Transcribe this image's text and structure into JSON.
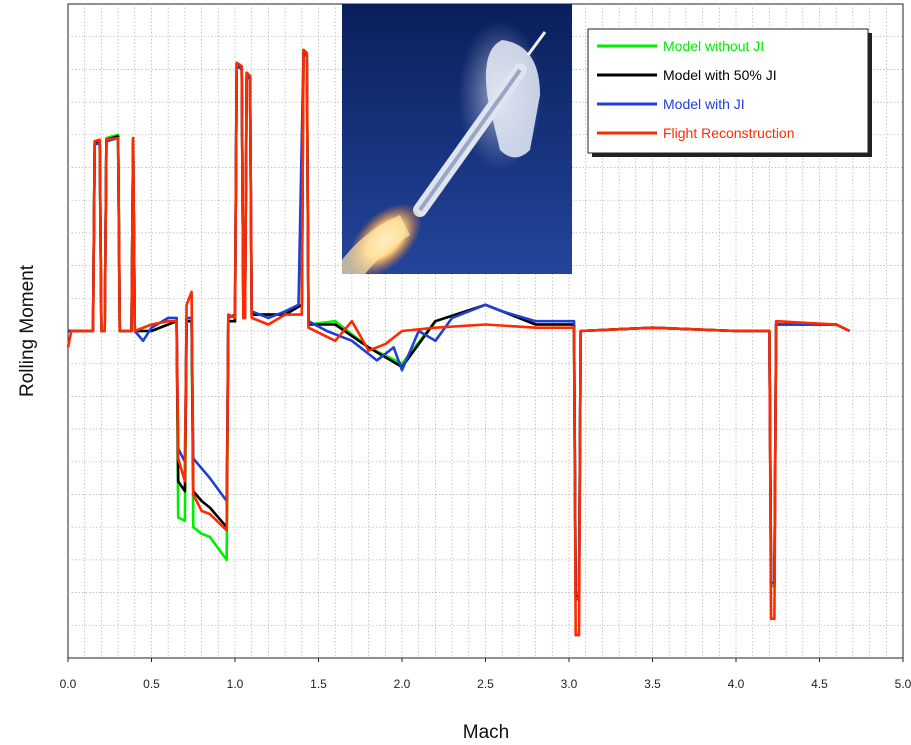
{
  "chart_data": {
    "type": "line",
    "title": "",
    "xlabel": "Mach",
    "ylabel": "Rolling Moment",
    "xlim": [
      0.0,
      5.0
    ],
    "ylim": [
      -10.0,
      10.0
    ],
    "x_ticks": [
      "0.0",
      "0.5",
      "1.0",
      "1.5",
      "2.0",
      "2.5",
      "3.0",
      "3.5",
      "4.0",
      "4.5",
      "5.0"
    ],
    "y_tick_labels_shown": false,
    "grid": true,
    "legend_position": "top-right",
    "inset_image": "rocket-launch-photo",
    "colors": {
      "model_without_ji": "#00ee00",
      "model_with_50_ji": "#000000",
      "model_with_ji": "#1f3fd6",
      "flight_reconstruction": "#ff2a00",
      "grid": "#b0b0b0"
    },
    "series": [
      {
        "name": "Model without JI",
        "color": "#00ee00",
        "points": [
          [
            0.0,
            0.0
          ],
          [
            0.15,
            0.0
          ],
          [
            0.16,
            5.8
          ],
          [
            0.19,
            5.85
          ],
          [
            0.2,
            0.0
          ],
          [
            0.22,
            0.0
          ],
          [
            0.23,
            5.9
          ],
          [
            0.3,
            6.0
          ],
          [
            0.31,
            0.0
          ],
          [
            0.38,
            0.0
          ],
          [
            0.39,
            5.9
          ],
          [
            0.4,
            0.0
          ],
          [
            0.5,
            0.0
          ],
          [
            0.65,
            0.3
          ],
          [
            0.66,
            -5.7
          ],
          [
            0.7,
            -5.8
          ],
          [
            0.71,
            0.3
          ],
          [
            0.74,
            0.3
          ],
          [
            0.75,
            -6.0
          ],
          [
            0.8,
            -6.2
          ],
          [
            0.85,
            -6.3
          ],
          [
            0.95,
            -7.0
          ],
          [
            0.96,
            0.3
          ],
          [
            1.0,
            0.3
          ],
          [
            1.01,
            8.2
          ],
          [
            1.04,
            8.1
          ],
          [
            1.05,
            0.4
          ],
          [
            1.06,
            0.4
          ],
          [
            1.07,
            7.9
          ],
          [
            1.09,
            7.8
          ],
          [
            1.1,
            0.5
          ],
          [
            1.3,
            0.5
          ],
          [
            1.4,
            0.8
          ],
          [
            1.41,
            8.6
          ],
          [
            1.43,
            8.5
          ],
          [
            1.44,
            0.2
          ],
          [
            1.6,
            0.3
          ],
          [
            1.8,
            -0.5
          ],
          [
            2.0,
            -1.0
          ],
          [
            2.2,
            0.3
          ],
          [
            2.5,
            0.8
          ],
          [
            2.8,
            0.2
          ],
          [
            3.03,
            0.2
          ],
          [
            3.04,
            -8.0
          ],
          [
            3.06,
            -8.0
          ],
          [
            3.07,
            0.0
          ],
          [
            3.5,
            0.1
          ],
          [
            4.0,
            0.0
          ],
          [
            4.2,
            0.0
          ],
          [
            4.21,
            -7.8
          ],
          [
            4.23,
            -7.8
          ],
          [
            4.24,
            0.2
          ],
          [
            4.6,
            0.2
          ],
          [
            4.68,
            0.0
          ]
        ]
      },
      {
        "name": "Model with 50% JI",
        "color": "#000000",
        "points": [
          [
            0.0,
            0.0
          ],
          [
            0.15,
            0.0
          ],
          [
            0.16,
            5.75
          ],
          [
            0.19,
            5.8
          ],
          [
            0.2,
            0.0
          ],
          [
            0.22,
            0.0
          ],
          [
            0.23,
            5.85
          ],
          [
            0.3,
            5.95
          ],
          [
            0.31,
            0.0
          ],
          [
            0.38,
            0.0
          ],
          [
            0.39,
            5.85
          ],
          [
            0.4,
            0.0
          ],
          [
            0.5,
            0.0
          ],
          [
            0.65,
            0.3
          ],
          [
            0.66,
            -4.6
          ],
          [
            0.7,
            -4.9
          ],
          [
            0.71,
            0.3
          ],
          [
            0.74,
            0.3
          ],
          [
            0.75,
            -4.9
          ],
          [
            0.8,
            -5.2
          ],
          [
            0.85,
            -5.4
          ],
          [
            0.95,
            -6.0
          ],
          [
            0.96,
            0.3
          ],
          [
            1.0,
            0.3
          ],
          [
            1.01,
            8.15
          ],
          [
            1.04,
            8.05
          ],
          [
            1.05,
            0.4
          ],
          [
            1.06,
            0.4
          ],
          [
            1.07,
            7.85
          ],
          [
            1.09,
            7.75
          ],
          [
            1.1,
            0.5
          ],
          [
            1.3,
            0.5
          ],
          [
            1.4,
            0.8
          ],
          [
            1.41,
            8.55
          ],
          [
            1.43,
            8.45
          ],
          [
            1.44,
            0.2
          ],
          [
            1.6,
            0.2
          ],
          [
            1.8,
            -0.5
          ],
          [
            2.0,
            -1.1
          ],
          [
            2.2,
            0.3
          ],
          [
            2.5,
            0.8
          ],
          [
            2.8,
            0.2
          ],
          [
            3.03,
            0.2
          ],
          [
            3.04,
            -8.1
          ],
          [
            3.06,
            -8.1
          ],
          [
            3.07,
            0.0
          ],
          [
            3.5,
            0.1
          ],
          [
            4.0,
            0.0
          ],
          [
            4.2,
            0.0
          ],
          [
            4.21,
            -7.7
          ],
          [
            4.23,
            -7.7
          ],
          [
            4.24,
            0.2
          ],
          [
            4.6,
            0.2
          ],
          [
            4.68,
            0.0
          ]
        ]
      },
      {
        "name": "Model with JI",
        "color": "#1f3fd6",
        "points": [
          [
            0.0,
            0.0
          ],
          [
            0.15,
            0.0
          ],
          [
            0.16,
            5.7
          ],
          [
            0.19,
            5.75
          ],
          [
            0.2,
            0.0
          ],
          [
            0.22,
            0.0
          ],
          [
            0.23,
            5.8
          ],
          [
            0.3,
            5.9
          ],
          [
            0.31,
            0.0
          ],
          [
            0.38,
            0.0
          ],
          [
            0.39,
            5.8
          ],
          [
            0.4,
            0.0
          ],
          [
            0.45,
            -0.3
          ],
          [
            0.5,
            0.1
          ],
          [
            0.6,
            0.4
          ],
          [
            0.65,
            0.4
          ],
          [
            0.66,
            -3.6
          ],
          [
            0.7,
            -4.0
          ],
          [
            0.71,
            0.4
          ],
          [
            0.74,
            0.4
          ],
          [
            0.75,
            -3.9
          ],
          [
            0.8,
            -4.2
          ],
          [
            0.85,
            -4.5
          ],
          [
            0.95,
            -5.2
          ],
          [
            0.96,
            0.4
          ],
          [
            1.0,
            0.5
          ],
          [
            1.01,
            8.1
          ],
          [
            1.04,
            8.0
          ],
          [
            1.05,
            0.5
          ],
          [
            1.06,
            0.5
          ],
          [
            1.07,
            7.8
          ],
          [
            1.09,
            7.7
          ],
          [
            1.1,
            0.6
          ],
          [
            1.2,
            0.4
          ],
          [
            1.3,
            0.6
          ],
          [
            1.38,
            0.8
          ],
          [
            1.41,
            8.5
          ],
          [
            1.43,
            8.4
          ],
          [
            1.44,
            0.3
          ],
          [
            1.55,
            0.0
          ],
          [
            1.7,
            -0.3
          ],
          [
            1.85,
            -0.9
          ],
          [
            1.95,
            -0.5
          ],
          [
            2.0,
            -1.2
          ],
          [
            2.1,
            0.0
          ],
          [
            2.2,
            -0.3
          ],
          [
            2.3,
            0.4
          ],
          [
            2.5,
            0.8
          ],
          [
            2.6,
            0.6
          ],
          [
            2.8,
            0.3
          ],
          [
            3.03,
            0.3
          ],
          [
            3.04,
            -8.2
          ],
          [
            3.06,
            -8.2
          ],
          [
            3.07,
            0.0
          ],
          [
            3.5,
            0.1
          ],
          [
            4.0,
            0.0
          ],
          [
            4.2,
            0.0
          ],
          [
            4.21,
            -7.7
          ],
          [
            4.23,
            -7.7
          ],
          [
            4.24,
            0.2
          ],
          [
            4.6,
            0.2
          ],
          [
            4.68,
            0.0
          ]
        ]
      },
      {
        "name": "Flight Reconstruction",
        "color": "#ff2a00",
        "points": [
          [
            0.0,
            -0.5
          ],
          [
            0.02,
            0.0
          ],
          [
            0.15,
            0.0
          ],
          [
            0.16,
            5.8
          ],
          [
            0.19,
            5.85
          ],
          [
            0.2,
            0.0
          ],
          [
            0.22,
            0.0
          ],
          [
            0.23,
            5.85
          ],
          [
            0.3,
            5.9
          ],
          [
            0.31,
            0.0
          ],
          [
            0.38,
            0.0
          ],
          [
            0.39,
            5.9
          ],
          [
            0.4,
            0.0
          ],
          [
            0.5,
            0.2
          ],
          [
            0.6,
            0.3
          ],
          [
            0.65,
            0.3
          ],
          [
            0.66,
            -3.9
          ],
          [
            0.7,
            -4.6
          ],
          [
            0.71,
            0.8
          ],
          [
            0.74,
            1.2
          ],
          [
            0.75,
            -5.0
          ],
          [
            0.8,
            -5.5
          ],
          [
            0.85,
            -5.6
          ],
          [
            0.95,
            -6.1
          ],
          [
            0.96,
            0.5
          ],
          [
            1.0,
            0.4
          ],
          [
            1.01,
            8.2
          ],
          [
            1.04,
            8.1
          ],
          [
            1.05,
            0.4
          ],
          [
            1.06,
            0.4
          ],
          [
            1.07,
            7.9
          ],
          [
            1.09,
            7.8
          ],
          [
            1.1,
            0.4
          ],
          [
            1.2,
            0.2
          ],
          [
            1.3,
            0.5
          ],
          [
            1.4,
            0.5
          ],
          [
            1.41,
            8.6
          ],
          [
            1.43,
            8.5
          ],
          [
            1.44,
            0.1
          ],
          [
            1.6,
            -0.3
          ],
          [
            1.7,
            0.3
          ],
          [
            1.8,
            -0.6
          ],
          [
            1.9,
            -0.4
          ],
          [
            2.0,
            0.0
          ],
          [
            2.2,
            0.1
          ],
          [
            2.5,
            0.2
          ],
          [
            2.8,
            0.1
          ],
          [
            3.03,
            0.1
          ],
          [
            3.04,
            -9.3
          ],
          [
            3.06,
            -9.3
          ],
          [
            3.07,
            0.0
          ],
          [
            3.5,
            0.1
          ],
          [
            4.0,
            0.0
          ],
          [
            4.2,
            0.0
          ],
          [
            4.21,
            -8.8
          ],
          [
            4.23,
            -8.8
          ],
          [
            4.24,
            0.3
          ],
          [
            4.6,
            0.2
          ],
          [
            4.68,
            0.0
          ]
        ]
      }
    ]
  }
}
